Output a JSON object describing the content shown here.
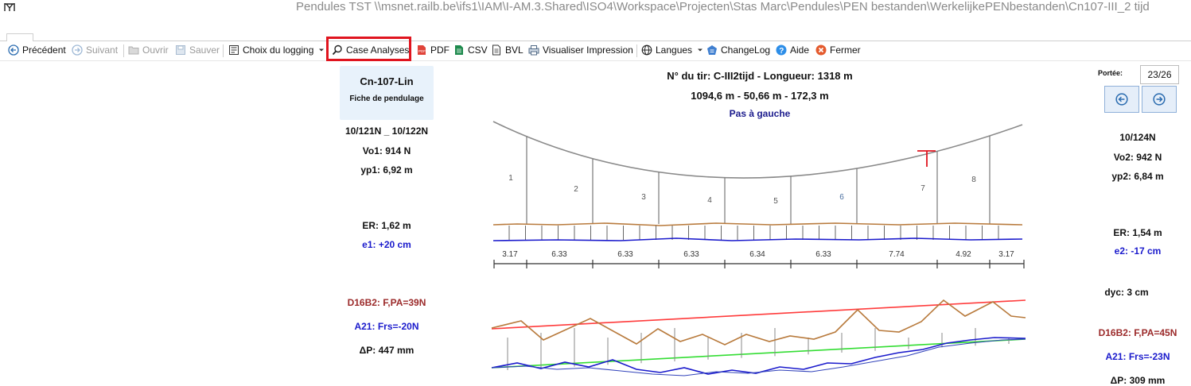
{
  "window": {
    "title": "Pendules TST  \\\\msnet.railb.be\\ifs1\\IAM\\I-AM.3.Shared\\ISO4\\Workspace\\Projecten\\Stas Marc\\Pendules\\PEN bestanden\\WerkelijkePENbestanden\\Cn107-III_2 tijd"
  },
  "toolbar": {
    "previous": "Précédent",
    "next": "Suivant",
    "open": "Ouvrir",
    "save": "Sauver",
    "logging": "Choix du logging",
    "case_analyses": "Case Analyses",
    "pdf": "PDF",
    "csv": "CSV",
    "bvl": "BVL",
    "print_preview": "Visualiser Impression",
    "languages": "Langues",
    "changelog": "ChangeLog",
    "help": "Aide",
    "close": "Fermer"
  },
  "card": {
    "title": "Cn-107-Lin",
    "subtitle": "Fiche de pendulage"
  },
  "header": {
    "line1": "N° du tir: C-III2tijd - Longueur: 1318 m",
    "line2": "1094,6 m - 50,66 m - 172,3 m",
    "line3": "Pas à gauche"
  },
  "left": {
    "range": "10/121N _ 10/122N",
    "vo": "Vo1: 914 N",
    "yp": "yp1: 6,92 m",
    "er": "ER: 1,62 m",
    "e": "e1: +20 cm",
    "d16": "D16B2: F,PA=39N",
    "a21": "A21: Frs=-20N",
    "dp": "ΔP: 447 mm"
  },
  "right": {
    "portee_label": "Portée:",
    "portee_value": "23/26",
    "range": "10/124N",
    "vo": "Vo2: 942 N",
    "yp": "yp2: 6,84 m",
    "er": "ER: 1,54 m",
    "e": "e2: -17 cm",
    "dyc": "dyc: 3 cm",
    "d16": "D16B2: F,PA=45N",
    "a21": "A21: Frs=-23N",
    "dp": "ΔP: 309 mm"
  },
  "chart": {
    "pendulum_numbers": [
      "1",
      "2",
      "3",
      "4",
      "5",
      "6",
      "7",
      "8"
    ],
    "spacings": [
      "3.17",
      "6.33",
      "6.33",
      "6.33",
      "6.34",
      "6.33",
      "7.74",
      "4.92",
      "3.17"
    ]
  },
  "colors": {
    "highlight": "#e0141e",
    "catenary": "#8a8a8a",
    "contact_wire": "#b87a3c",
    "rail": "#1a1acc",
    "upper_limit": "#ff3b3b",
    "lower_limit": "#33dd33"
  }
}
